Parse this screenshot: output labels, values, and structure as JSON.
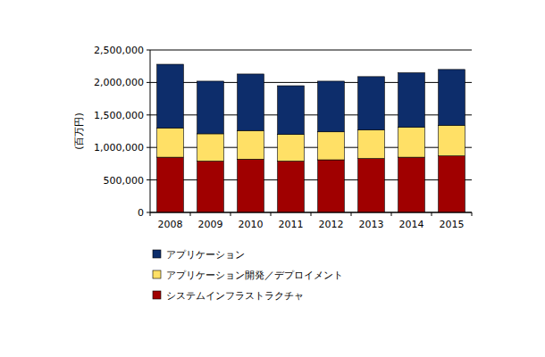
{
  "chart_data": {
    "type": "bar",
    "stacked": true,
    "grid": true,
    "y_label": "(百万円)",
    "categories": [
      "2008",
      "2009",
      "2010",
      "2011",
      "2012",
      "2013",
      "2014",
      "2015"
    ],
    "series": [
      {
        "name": "アプリケーション",
        "color": "#0d2d6b",
        "values": [
          980000,
          810000,
          870000,
          750000,
          780000,
          820000,
          840000,
          860000
        ]
      },
      {
        "name": "アプリケーション開発／デプロイメント",
        "color": "#ffe066",
        "values": [
          450000,
          420000,
          440000,
          410000,
          430000,
          440000,
          460000,
          470000
        ]
      },
      {
        "name": "システムインフラストラクチャ",
        "color": "#a00000",
        "values": [
          850000,
          790000,
          820000,
          790000,
          810000,
          830000,
          850000,
          870000
        ]
      }
    ],
    "ylim": [
      0,
      2500000
    ],
    "yticks": [
      0,
      {
        "value": 500000,
        "label": "500,000"
      },
      {
        "value": 1000000,
        "label": "1,000,000"
      },
      {
        "value": 1500000,
        "label": "1,500,000"
      },
      {
        "value": 2000000,
        "label": "2,000,000"
      },
      {
        "value": 2500000,
        "label": "2,500,000"
      }
    ],
    "legend": "bottom"
  }
}
